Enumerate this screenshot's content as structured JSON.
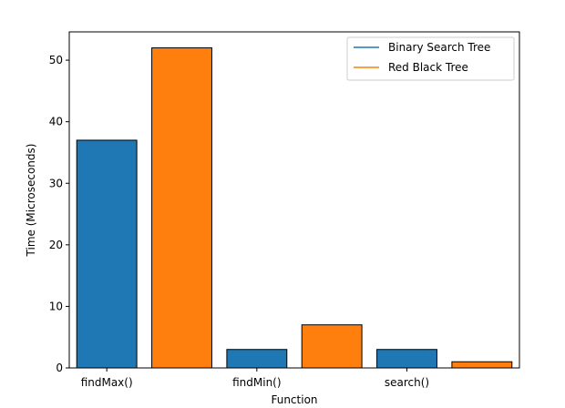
{
  "chart_data": {
    "type": "bar",
    "categories": [
      "findMax()",
      "findMin()",
      "search()"
    ],
    "series": [
      {
        "name": "Binary Search Tree",
        "values": [
          37,
          3,
          3
        ],
        "color": "#1f77b4"
      },
      {
        "name": "Red Black Tree",
        "values": [
          52,
          7,
          1
        ],
        "color": "#ff7f0e"
      }
    ],
    "xlabel": "Function",
    "ylabel": "Time (Microseconds)",
    "ylim": [
      0,
      54.6
    ],
    "yticks": [
      0,
      10,
      20,
      30,
      40,
      50
    ],
    "grid": false,
    "legend_position": "top-right",
    "bar_edge_color": "#000000"
  }
}
